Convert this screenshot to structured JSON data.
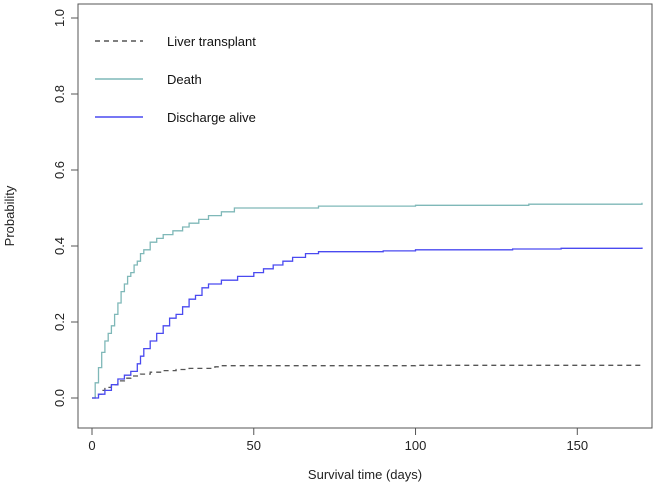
{
  "chart_data": {
    "type": "line",
    "title": "",
    "xlabel": "Survival time (days)",
    "ylabel": "Probability",
    "xlim": [
      0,
      170
    ],
    "ylim": [
      0,
      1
    ],
    "xticks": [
      0,
      50,
      100,
      150
    ],
    "yticks": [
      0.0,
      0.2,
      0.4,
      0.6,
      0.8,
      1.0
    ],
    "ytick_labels": [
      "0.0",
      "0.2",
      "0.4",
      "0.6",
      "0.8",
      "1.0"
    ],
    "grid": false,
    "legend_position": "top-left",
    "series": [
      {
        "name": "Liver transplant",
        "color": "#555555",
        "dash": "dashed",
        "step": true,
        "points": [
          [
            0,
            0
          ],
          [
            1,
            0.005
          ],
          [
            2,
            0.01
          ],
          [
            3,
            0.02
          ],
          [
            4,
            0.028
          ],
          [
            6,
            0.035
          ],
          [
            8,
            0.045
          ],
          [
            10,
            0.052
          ],
          [
            12,
            0.058
          ],
          [
            15,
            0.063
          ],
          [
            18,
            0.068
          ],
          [
            22,
            0.072
          ],
          [
            26,
            0.075
          ],
          [
            30,
            0.078
          ],
          [
            38,
            0.082
          ],
          [
            40,
            0.085
          ],
          [
            60,
            0.085
          ],
          [
            100,
            0.086
          ],
          [
            170,
            0.086
          ]
        ]
      },
      {
        "name": "Death",
        "color": "#7fb8b8",
        "dash": "solid",
        "step": true,
        "points": [
          [
            0,
            0
          ],
          [
            1,
            0.04
          ],
          [
            2,
            0.08
          ],
          [
            3,
            0.12
          ],
          [
            4,
            0.15
          ],
          [
            5,
            0.17
          ],
          [
            6,
            0.19
          ],
          [
            7,
            0.22
          ],
          [
            8,
            0.25
          ],
          [
            9,
            0.28
          ],
          [
            10,
            0.3
          ],
          [
            11,
            0.32
          ],
          [
            12,
            0.33
          ],
          [
            13,
            0.35
          ],
          [
            14,
            0.36
          ],
          [
            15,
            0.38
          ],
          [
            16,
            0.39
          ],
          [
            18,
            0.41
          ],
          [
            20,
            0.42
          ],
          [
            22,
            0.43
          ],
          [
            25,
            0.44
          ],
          [
            28,
            0.45
          ],
          [
            30,
            0.46
          ],
          [
            33,
            0.47
          ],
          [
            36,
            0.48
          ],
          [
            40,
            0.49
          ],
          [
            44,
            0.5
          ],
          [
            50,
            0.5
          ],
          [
            70,
            0.505
          ],
          [
            100,
            0.507
          ],
          [
            135,
            0.51
          ],
          [
            170,
            0.514
          ]
        ]
      },
      {
        "name": "Discharge alive",
        "color": "#4a4af0",
        "dash": "solid",
        "step": true,
        "points": [
          [
            0,
            0
          ],
          [
            2,
            0.01
          ],
          [
            4,
            0.02
          ],
          [
            6,
            0.035
          ],
          [
            8,
            0.05
          ],
          [
            10,
            0.06
          ],
          [
            12,
            0.07
          ],
          [
            14,
            0.09
          ],
          [
            15,
            0.11
          ],
          [
            16,
            0.13
          ],
          [
            18,
            0.15
          ],
          [
            20,
            0.17
          ],
          [
            22,
            0.19
          ],
          [
            24,
            0.21
          ],
          [
            26,
            0.22
          ],
          [
            28,
            0.24
          ],
          [
            30,
            0.26
          ],
          [
            32,
            0.27
          ],
          [
            34,
            0.29
          ],
          [
            36,
            0.3
          ],
          [
            40,
            0.31
          ],
          [
            45,
            0.32
          ],
          [
            50,
            0.33
          ],
          [
            53,
            0.34
          ],
          [
            56,
            0.35
          ],
          [
            59,
            0.36
          ],
          [
            62,
            0.37
          ],
          [
            66,
            0.38
          ],
          [
            70,
            0.385
          ],
          [
            90,
            0.387
          ],
          [
            100,
            0.39
          ],
          [
            130,
            0.392
          ],
          [
            145,
            0.394
          ],
          [
            170,
            0.396
          ]
        ]
      }
    ]
  }
}
